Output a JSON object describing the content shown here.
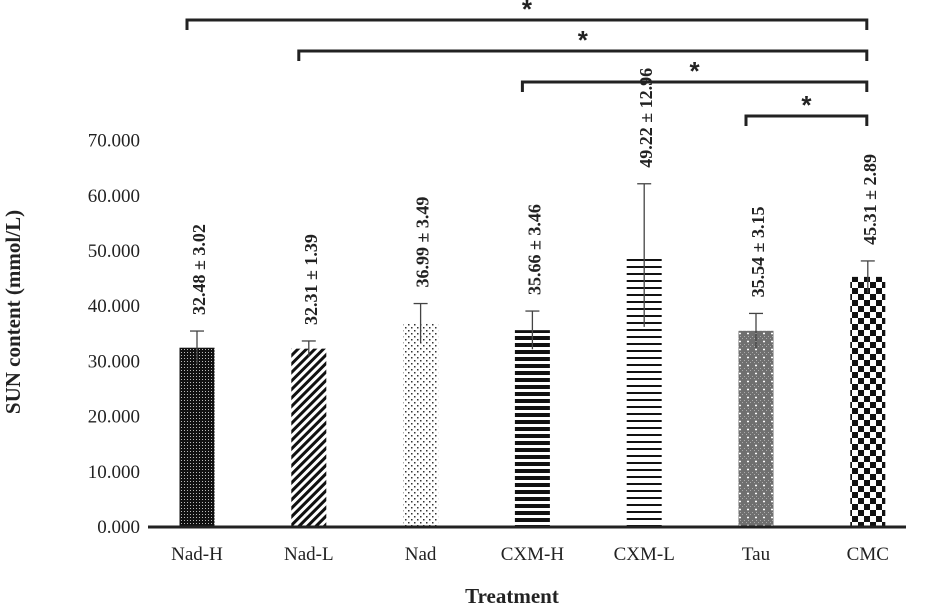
{
  "chart_data": {
    "type": "bar",
    "title": "",
    "xlabel": "Treatment",
    "ylabel": "SUN content (mmol/L)",
    "ylim": [
      0,
      70
    ],
    "yticks": [
      "0.000",
      "10.000",
      "20.000",
      "30.000",
      "40.000",
      "50.000",
      "60.000",
      "70.000"
    ],
    "ytick_values": [
      0,
      10,
      20,
      30,
      40,
      50,
      60,
      70
    ],
    "grid": false,
    "legend": "none",
    "categories": [
      "Nad-H",
      "Nad-L",
      "Nad",
      "CXM-H",
      "CXM-L",
      "Tau",
      "CMC"
    ],
    "values": [
      32.48,
      32.31,
      36.99,
      35.66,
      49.22,
      35.54,
      45.31
    ],
    "errors": [
      3.02,
      1.39,
      3.49,
      3.46,
      12.96,
      3.15,
      2.89
    ],
    "data_labels": [
      "32.48 ± 3.02",
      "32.31 ± 1.39",
      "36.99 ± 3.49",
      "35.66 ± 3.46",
      "49.22 ± 12.96",
      "35.54 ± 3.15",
      "45.31 ± 2.89"
    ],
    "patterns": [
      "dense-grid",
      "diagonal-stripes",
      "sparse-dots",
      "thick-horizontal-lines",
      "thin-horizontal-lines",
      "gray-crosshatch",
      "checkerboard"
    ],
    "significance": [
      {
        "from": "Nad-H",
        "to": "CMC",
        "label": "*"
      },
      {
        "from": "Nad-L",
        "to": "CMC",
        "label": "*"
      },
      {
        "from": "CXM-H",
        "to": "CMC",
        "label": "*"
      },
      {
        "from": "Tau",
        "to": "CMC",
        "label": "*"
      }
    ]
  },
  "colors": {
    "ink": "#222222",
    "bar_dark": "#111111",
    "bar_gray": "#777777",
    "background": "#ffffff"
  }
}
